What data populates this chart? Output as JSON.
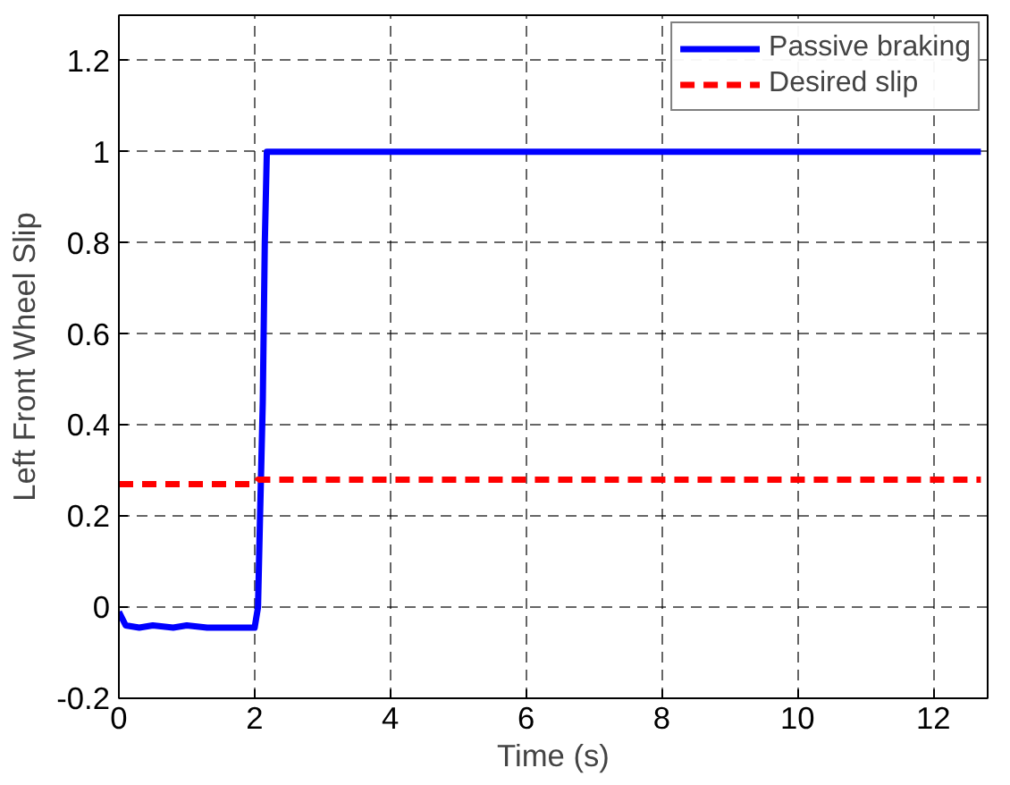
{
  "chart_data": {
    "type": "line",
    "xlabel": "Time (s)",
    "ylabel": "Left Front Wheel Slip",
    "xlim": [
      0,
      12.8
    ],
    "ylim": [
      -0.2,
      1.3
    ],
    "xticks": [
      0,
      2,
      4,
      6,
      8,
      10,
      12
    ],
    "yticks": [
      -0.2,
      0,
      0.2,
      0.4,
      0.6,
      0.8,
      1,
      1.2
    ],
    "grid": true,
    "legend": "top right",
    "series": [
      {
        "name": "Passive braking",
        "color": "#0000ff",
        "line_style": "solid",
        "x": [
          0,
          0.1,
          0.3,
          0.5,
          0.8,
          1.0,
          1.3,
          1.6,
          2.0,
          2.05,
          2.08,
          2.12,
          2.15,
          2.18,
          12.7
        ],
        "values": [
          -0.01,
          -0.04,
          -0.045,
          -0.04,
          -0.045,
          -0.04,
          -0.045,
          -0.045,
          -0.045,
          0.0,
          0.2,
          0.45,
          0.8,
          1.0,
          1.0
        ]
      },
      {
        "name": "Desired slip",
        "color": "#ff0000",
        "line_style": "dashed",
        "x": [
          0,
          2.0,
          2.05,
          12.7
        ],
        "values": [
          0.27,
          0.27,
          0.28,
          0.28
        ]
      }
    ]
  }
}
